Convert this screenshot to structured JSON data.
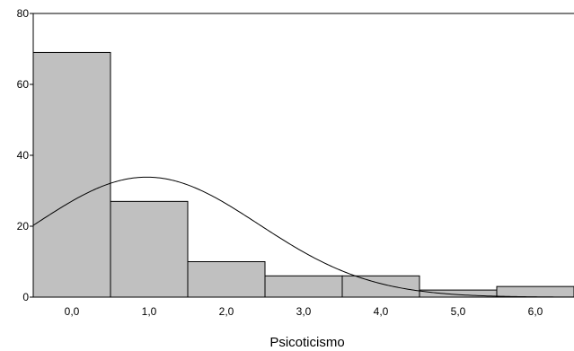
{
  "chart_data": {
    "type": "bar",
    "subtype": "histogram with normal curve",
    "xlabel": "Psicoticismo",
    "ylabel": "",
    "categories": [
      "0,0",
      "1,0",
      "2,0",
      "3,0",
      "4,0",
      "5,0",
      "6,0"
    ],
    "x": [
      0,
      1,
      2,
      3,
      4,
      5,
      6
    ],
    "values": [
      69,
      27,
      10,
      6,
      6,
      2,
      3
    ],
    "ylim": [
      0,
      80
    ],
    "yticks": [
      "0",
      "20",
      "40",
      "60",
      "80"
    ],
    "xlim": [
      -0.5,
      6.5
    ],
    "bar_color": "#c0c0c0",
    "normal_curve": {
      "mean": 0.97,
      "sd": 1.45,
      "n": 123,
      "bin_width": 1
    },
    "grid": false,
    "legend": "none"
  }
}
